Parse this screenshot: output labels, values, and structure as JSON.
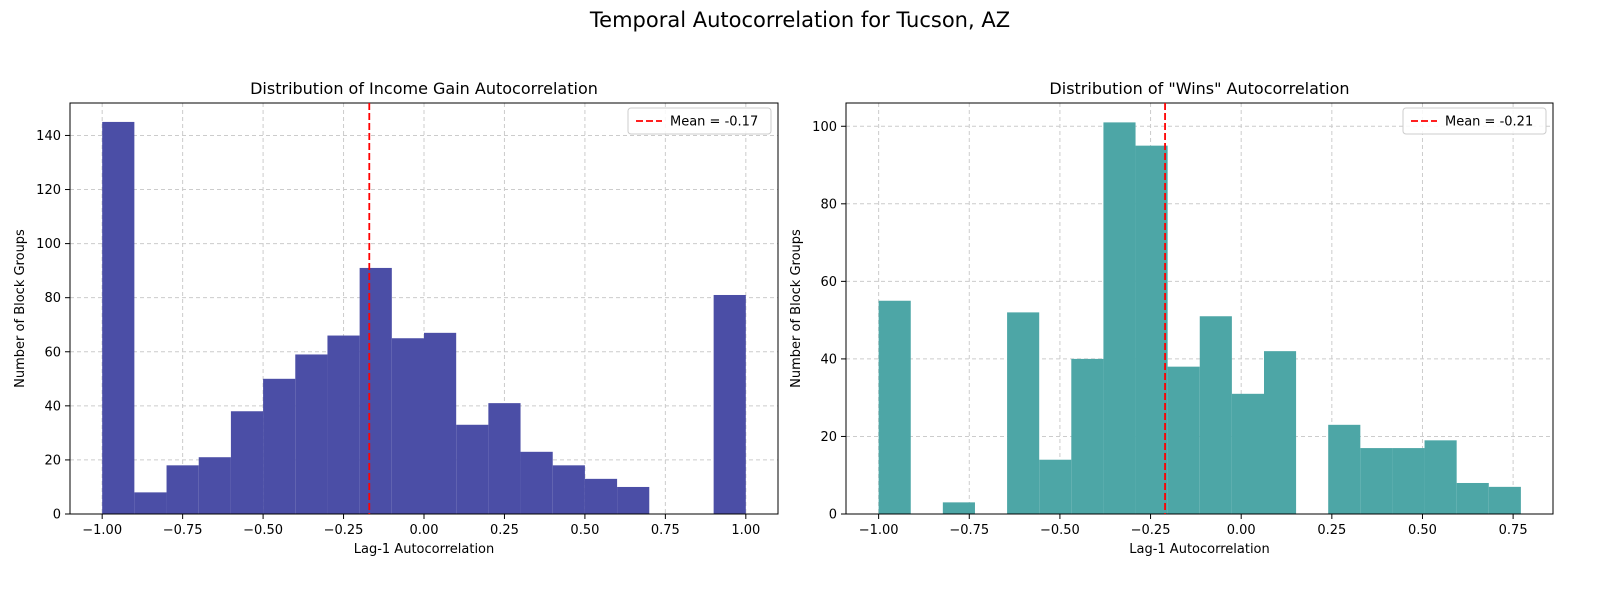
{
  "figure": {
    "suptitle": "Temporal Autocorrelation for Tucson, AZ"
  },
  "chart_data": [
    {
      "type": "bar",
      "title": "Distribution of Income Gain Autocorrelation",
      "xlabel": "Lag-1 Autocorrelation",
      "ylabel": "Number of Block Groups",
      "color": "#4b4ea6",
      "xlim": [
        -1.1,
        1.1
      ],
      "ylim": [
        0,
        152
      ],
      "xticks": [
        -1.0,
        -0.75,
        -0.5,
        -0.25,
        0.0,
        0.25,
        0.5,
        0.75,
        1.0
      ],
      "xtick_labels": [
        "−1.00",
        "−0.75",
        "−0.50",
        "−0.25",
        "0.00",
        "0.25",
        "0.50",
        "0.75",
        "1.00"
      ],
      "yticks": [
        0,
        20,
        40,
        60,
        80,
        100,
        120,
        140
      ],
      "ytick_labels": [
        "0",
        "20",
        "40",
        "60",
        "80",
        "100",
        "120",
        "140"
      ],
      "grid": true,
      "bins": [
        -1.0,
        -0.9,
        -0.8,
        -0.7,
        -0.6,
        -0.5,
        -0.4,
        -0.3,
        -0.2,
        -0.1,
        0.0,
        0.1,
        0.2,
        0.3,
        0.4,
        0.5,
        0.6,
        0.7,
        0.8,
        0.9,
        1.0
      ],
      "counts": [
        145,
        8,
        18,
        21,
        38,
        50,
        59,
        66,
        91,
        65,
        67,
        33,
        41,
        23,
        18,
        13,
        10,
        0,
        0,
        81
      ],
      "mean_line": {
        "value": -0.17,
        "color": "#ff0000",
        "label": "Mean = -0.17"
      },
      "legend_position": "upper-right"
    },
    {
      "type": "bar",
      "title": "Distribution of \"Wins\" Autocorrelation",
      "xlabel": "Lag-1 Autocorrelation",
      "ylabel": "Number of Block Groups",
      "color": "#4da6a6",
      "xlim": [
        -1.09,
        0.86
      ],
      "ylim": [
        0,
        106
      ],
      "xticks": [
        -1.0,
        -0.75,
        -0.5,
        -0.25,
        0.0,
        0.25,
        0.5,
        0.75
      ],
      "xtick_labels": [
        "−1.00",
        "−0.75",
        "−0.50",
        "−0.25",
        "0.00",
        "0.25",
        "0.50",
        "0.75"
      ],
      "yticks": [
        0,
        20,
        40,
        60,
        80,
        100
      ],
      "ytick_labels": [
        "0",
        "20",
        "40",
        "60",
        "80",
        "100"
      ],
      "grid": true,
      "bins": [
        -1.0,
        -0.9114,
        -0.8229,
        -0.7343,
        -0.6457,
        -0.5571,
        -0.4686,
        -0.38,
        -0.2914,
        -0.2029,
        -0.1143,
        -0.0257,
        0.0629,
        0.1514,
        0.24,
        0.3286,
        0.4171,
        0.5057,
        0.5943,
        0.6829,
        0.7714
      ],
      "counts": [
        55,
        0,
        3,
        0,
        52,
        14,
        40,
        101,
        95,
        38,
        51,
        31,
        42,
        0,
        23,
        17,
        17,
        19,
        8,
        7
      ],
      "mean_line": {
        "value": -0.21,
        "color": "#ff0000",
        "label": "Mean = -0.21"
      },
      "legend_position": "upper-right"
    }
  ]
}
